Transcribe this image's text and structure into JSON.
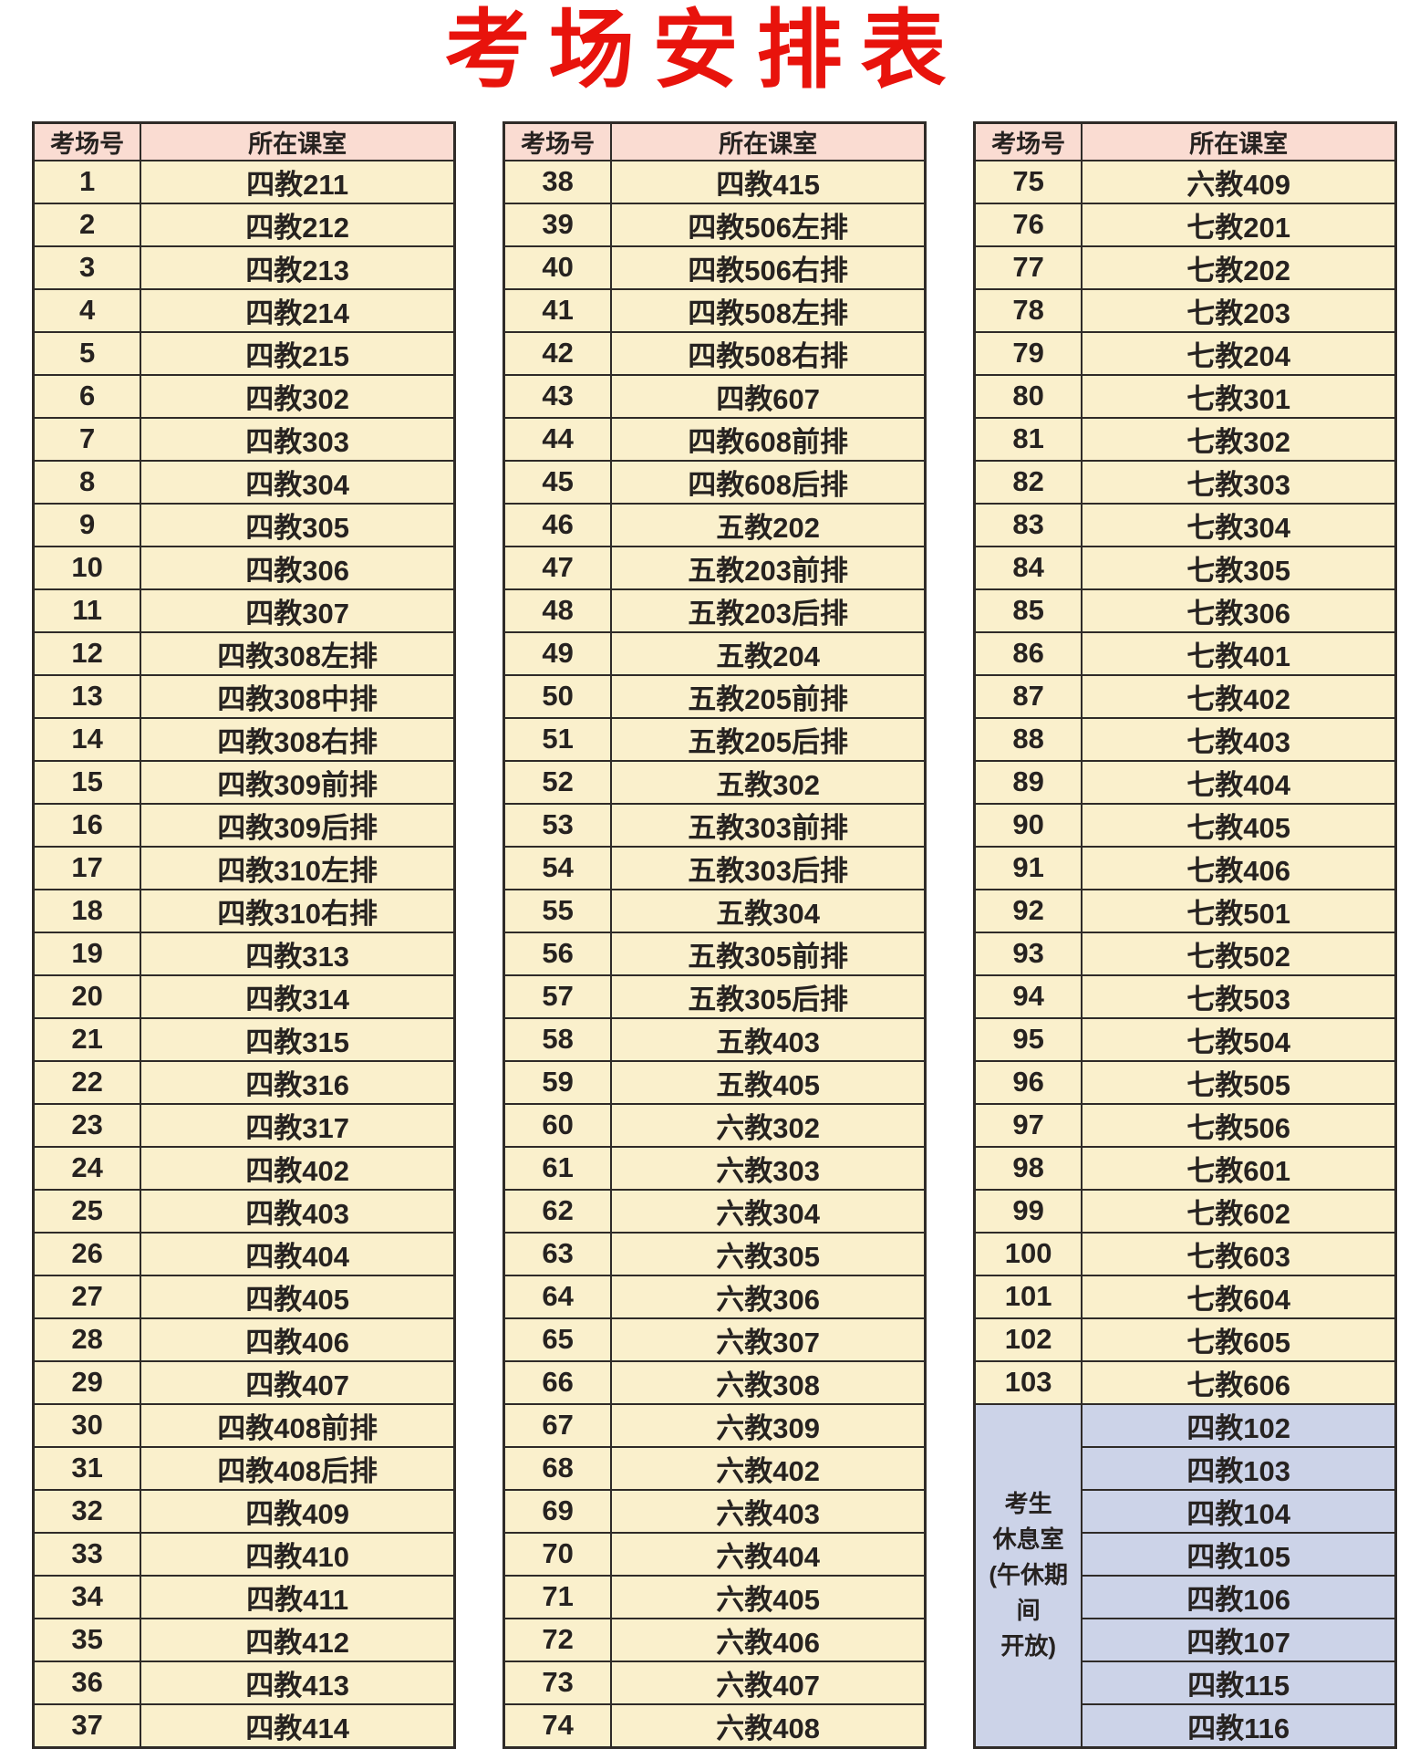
{
  "title": "考场安排表",
  "columns": {
    "room_no": "考场号",
    "classroom": "所在课室"
  },
  "colors": {
    "title": "#e8130c",
    "header_bg": "#fadcd2",
    "row_bg": "#faf0cc",
    "rest_bg": "#ccd3e8",
    "border": "#2f2b28",
    "text": "#262220"
  },
  "tables": [
    {
      "rows": [
        {
          "no": "1",
          "room": "四教211"
        },
        {
          "no": "2",
          "room": "四教212"
        },
        {
          "no": "3",
          "room": "四教213"
        },
        {
          "no": "4",
          "room": "四教214"
        },
        {
          "no": "5",
          "room": "四教215"
        },
        {
          "no": "6",
          "room": "四教302"
        },
        {
          "no": "7",
          "room": "四教303"
        },
        {
          "no": "8",
          "room": "四教304"
        },
        {
          "no": "9",
          "room": "四教305"
        },
        {
          "no": "10",
          "room": "四教306"
        },
        {
          "no": "11",
          "room": "四教307"
        },
        {
          "no": "12",
          "room": "四教308左排"
        },
        {
          "no": "13",
          "room": "四教308中排"
        },
        {
          "no": "14",
          "room": "四教308右排"
        },
        {
          "no": "15",
          "room": "四教309前排"
        },
        {
          "no": "16",
          "room": "四教309后排"
        },
        {
          "no": "17",
          "room": "四教310左排"
        },
        {
          "no": "18",
          "room": "四教310右排"
        },
        {
          "no": "19",
          "room": "四教313"
        },
        {
          "no": "20",
          "room": "四教314"
        },
        {
          "no": "21",
          "room": "四教315"
        },
        {
          "no": "22",
          "room": "四教316"
        },
        {
          "no": "23",
          "room": "四教317"
        },
        {
          "no": "24",
          "room": "四教402"
        },
        {
          "no": "25",
          "room": "四教403"
        },
        {
          "no": "26",
          "room": "四教404"
        },
        {
          "no": "27",
          "room": "四教405"
        },
        {
          "no": "28",
          "room": "四教406"
        },
        {
          "no": "29",
          "room": "四教407"
        },
        {
          "no": "30",
          "room": "四教408前排"
        },
        {
          "no": "31",
          "room": "四教408后排"
        },
        {
          "no": "32",
          "room": "四教409"
        },
        {
          "no": "33",
          "room": "四教410"
        },
        {
          "no": "34",
          "room": "四教411"
        },
        {
          "no": "35",
          "room": "四教412"
        },
        {
          "no": "36",
          "room": "四教413"
        },
        {
          "no": "37",
          "room": "四教414"
        }
      ]
    },
    {
      "rows": [
        {
          "no": "38",
          "room": "四教415"
        },
        {
          "no": "39",
          "room": "四教506左排"
        },
        {
          "no": "40",
          "room": "四教506右排"
        },
        {
          "no": "41",
          "room": "四教508左排"
        },
        {
          "no": "42",
          "room": "四教508右排"
        },
        {
          "no": "43",
          "room": "四教607"
        },
        {
          "no": "44",
          "room": "四教608前排"
        },
        {
          "no": "45",
          "room": "四教608后排"
        },
        {
          "no": "46",
          "room": "五教202"
        },
        {
          "no": "47",
          "room": "五教203前排"
        },
        {
          "no": "48",
          "room": "五教203后排"
        },
        {
          "no": "49",
          "room": "五教204"
        },
        {
          "no": "50",
          "room": "五教205前排"
        },
        {
          "no": "51",
          "room": "五教205后排"
        },
        {
          "no": "52",
          "room": "五教302"
        },
        {
          "no": "53",
          "room": "五教303前排"
        },
        {
          "no": "54",
          "room": "五教303后排"
        },
        {
          "no": "55",
          "room": "五教304"
        },
        {
          "no": "56",
          "room": "五教305前排"
        },
        {
          "no": "57",
          "room": "五教305后排"
        },
        {
          "no": "58",
          "room": "五教403"
        },
        {
          "no": "59",
          "room": "五教405"
        },
        {
          "no": "60",
          "room": "六教302"
        },
        {
          "no": "61",
          "room": "六教303"
        },
        {
          "no": "62",
          "room": "六教304"
        },
        {
          "no": "63",
          "room": "六教305"
        },
        {
          "no": "64",
          "room": "六教306"
        },
        {
          "no": "65",
          "room": "六教307"
        },
        {
          "no": "66",
          "room": "六教308"
        },
        {
          "no": "67",
          "room": "六教309"
        },
        {
          "no": "68",
          "room": "六教402"
        },
        {
          "no": "69",
          "room": "六教403"
        },
        {
          "no": "70",
          "room": "六教404"
        },
        {
          "no": "71",
          "room": "六教405"
        },
        {
          "no": "72",
          "room": "六教406"
        },
        {
          "no": "73",
          "room": "六教407"
        },
        {
          "no": "74",
          "room": "六教408"
        }
      ]
    },
    {
      "rows": [
        {
          "no": "75",
          "room": "六教409"
        },
        {
          "no": "76",
          "room": "七教201"
        },
        {
          "no": "77",
          "room": "七教202"
        },
        {
          "no": "78",
          "room": "七教203"
        },
        {
          "no": "79",
          "room": "七教204"
        },
        {
          "no": "80",
          "room": "七教301"
        },
        {
          "no": "81",
          "room": "七教302"
        },
        {
          "no": "82",
          "room": "七教303"
        },
        {
          "no": "83",
          "room": "七教304"
        },
        {
          "no": "84",
          "room": "七教305"
        },
        {
          "no": "85",
          "room": "七教306"
        },
        {
          "no": "86",
          "room": "七教401"
        },
        {
          "no": "87",
          "room": "七教402"
        },
        {
          "no": "88",
          "room": "七教403"
        },
        {
          "no": "89",
          "room": "七教404"
        },
        {
          "no": "90",
          "room": "七教405"
        },
        {
          "no": "91",
          "room": "七教406"
        },
        {
          "no": "92",
          "room": "七教501"
        },
        {
          "no": "93",
          "room": "七教502"
        },
        {
          "no": "94",
          "room": "七教503"
        },
        {
          "no": "95",
          "room": "七教504"
        },
        {
          "no": "96",
          "room": "七教505"
        },
        {
          "no": "97",
          "room": "七教506"
        },
        {
          "no": "98",
          "room": "七教601"
        },
        {
          "no": "99",
          "room": "七教602"
        },
        {
          "no": "100",
          "room": "七教603"
        },
        {
          "no": "101",
          "room": "七教604"
        },
        {
          "no": "102",
          "room": "七教605"
        },
        {
          "no": "103",
          "room": "七教606"
        }
      ],
      "rest": {
        "label_lines": [
          "考生",
          "休息室",
          "(午休期间",
          "开放)"
        ],
        "rooms": [
          "四教102",
          "四教103",
          "四教104",
          "四教105",
          "四教106",
          "四教107",
          "四教115",
          "四教116"
        ]
      }
    }
  ]
}
